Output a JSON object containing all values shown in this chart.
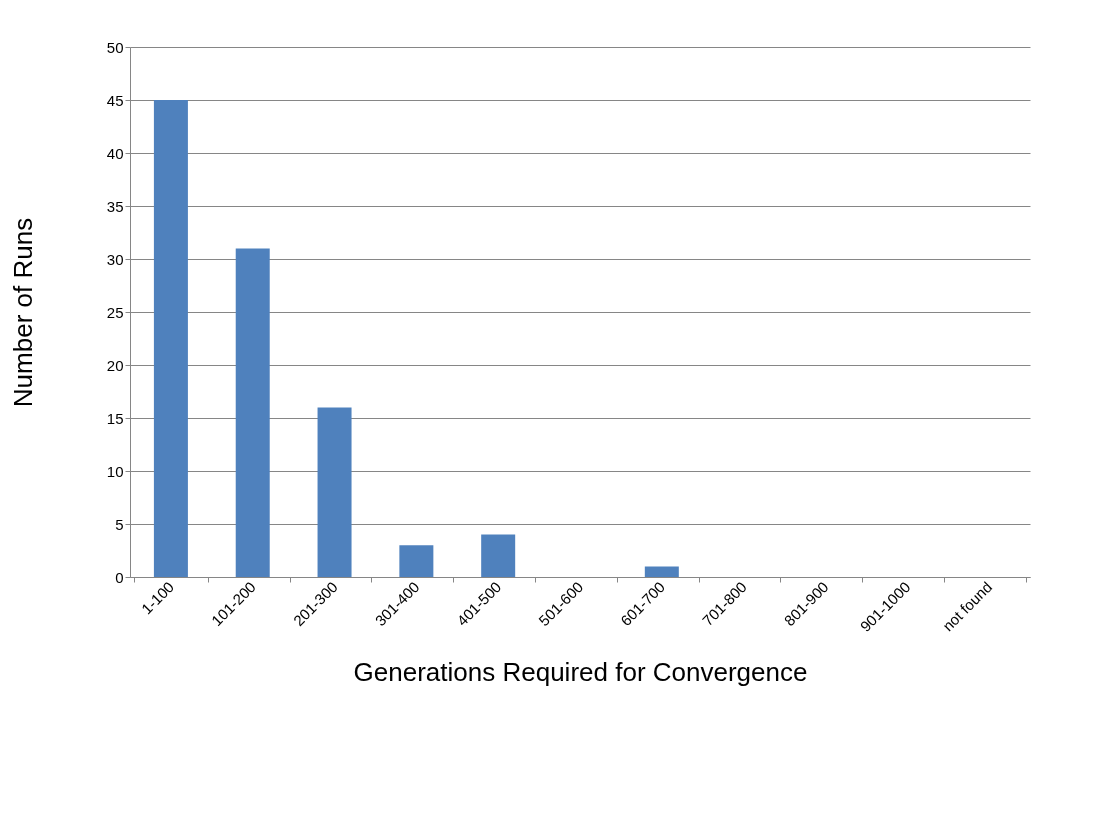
{
  "chart_data": {
    "type": "bar",
    "xlabel": "Generations Required for Convergence",
    "ylabel": "Number of Runs",
    "categories": [
      "1-100",
      "101-200",
      "201-300",
      "301-400",
      "401-500",
      "501-600",
      "601-700",
      "701-800",
      "801-900",
      "901-1000",
      "not found"
    ],
    "values": [
      45,
      31,
      16,
      3,
      4,
      0,
      1,
      0,
      0,
      0,
      0
    ],
    "color": "#4f81bd",
    "ylim": [
      0,
      50
    ],
    "yticks": [
      0,
      5,
      10,
      15,
      20,
      25,
      30,
      35,
      40,
      45,
      50
    ],
    "grid": "y"
  }
}
